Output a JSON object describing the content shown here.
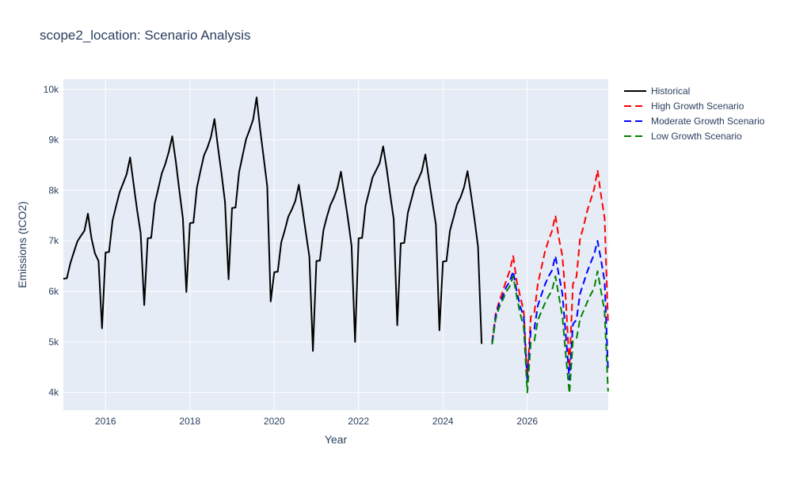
{
  "chart_data": {
    "type": "line",
    "title": "scope2_location: Scenario Analysis",
    "xlabel": "Year",
    "ylabel": "Emissions (tCO2)",
    "xlim": [
      2015.0,
      2027.92
    ],
    "ylim": [
      3650,
      10200
    ],
    "x_ticks": [
      2016,
      2018,
      2020,
      2022,
      2024,
      2026
    ],
    "x_tick_labels": [
      "2016",
      "2018",
      "2020",
      "2022",
      "2024",
      "2026"
    ],
    "y_ticks": [
      4000,
      5000,
      6000,
      7000,
      8000,
      9000,
      10000
    ],
    "y_tick_labels": [
      "4k",
      "5k",
      "6k",
      "7k",
      "8k",
      "9k",
      "10k"
    ],
    "grid": true,
    "legend_position": "top-right outside plot",
    "plot_background": "#e5ecf6",
    "series": [
      {
        "name": "Historical",
        "color": "#000000",
        "dash": "solid",
        "x": [
          2015.0,
          2015.083,
          2015.167,
          2015.25,
          2015.333,
          2015.417,
          2015.5,
          2015.583,
          2015.667,
          2015.75,
          2015.833,
          2015.917,
          2016.0,
          2016.083,
          2016.167,
          2016.25,
          2016.333,
          2016.417,
          2016.5,
          2016.583,
          2016.667,
          2016.75,
          2016.833,
          2016.917,
          2017.0,
          2017.083,
          2017.167,
          2017.25,
          2017.333,
          2017.417,
          2017.5,
          2017.583,
          2017.667,
          2017.75,
          2017.833,
          2017.917,
          2018.0,
          2018.083,
          2018.167,
          2018.25,
          2018.333,
          2018.417,
          2018.5,
          2018.583,
          2018.667,
          2018.75,
          2018.833,
          2018.917,
          2019.0,
          2019.083,
          2019.167,
          2019.25,
          2019.333,
          2019.417,
          2019.5,
          2019.583,
          2019.667,
          2019.75,
          2019.833,
          2019.917,
          2020.0,
          2020.083,
          2020.167,
          2020.25,
          2020.333,
          2020.417,
          2020.5,
          2020.583,
          2020.667,
          2020.75,
          2020.833,
          2020.917,
          2021.0,
          2021.083,
          2021.167,
          2021.25,
          2021.333,
          2021.417,
          2021.5,
          2021.583,
          2021.667,
          2021.75,
          2021.833,
          2021.917,
          2022.0,
          2022.083,
          2022.167,
          2022.25,
          2022.333,
          2022.417,
          2022.5,
          2022.583,
          2022.667,
          2022.75,
          2022.833,
          2022.917,
          2023.0,
          2023.083,
          2023.167,
          2023.25,
          2023.333,
          2023.417,
          2023.5,
          2023.583,
          2023.667,
          2023.75,
          2023.833,
          2023.917,
          2024.0,
          2024.083,
          2024.167,
          2024.25,
          2024.333,
          2024.417,
          2024.5,
          2024.583,
          2024.667,
          2024.75,
          2024.833,
          2024.917
        ],
        "y": [
          6250,
          6260,
          6560,
          6780,
          6990,
          7100,
          7200,
          7540,
          7050,
          6750,
          6600,
          5270,
          6770,
          6780,
          7400,
          7690,
          7960,
          8140,
          8320,
          8650,
          8110,
          7600,
          7150,
          5730,
          7050,
          7060,
          7740,
          8030,
          8330,
          8520,
          8760,
          9070,
          8570,
          8000,
          7450,
          5990,
          7350,
          7360,
          8050,
          8380,
          8690,
          8850,
          9060,
          9410,
          8840,
          8330,
          7770,
          6240,
          7650,
          7660,
          8360,
          8690,
          9010,
          9200,
          9400,
          9840,
          9200,
          8650,
          8080,
          5800,
          6380,
          6390,
          6970,
          7210,
          7480,
          7620,
          7790,
          8110,
          7640,
          7160,
          6690,
          4820,
          6600,
          6610,
          7210,
          7480,
          7710,
          7860,
          8050,
          8370,
          7890,
          7430,
          6900,
          5000,
          7050,
          7060,
          7700,
          7980,
          8260,
          8400,
          8540,
          8870,
          8420,
          7910,
          7430,
          5330,
          6950,
          6960,
          7550,
          7810,
          8070,
          8220,
          8380,
          8710,
          8220,
          7770,
          7320,
          5230,
          6590,
          6600,
          7200,
          7460,
          7720,
          7860,
          8060,
          8380,
          7910,
          7420,
          6880,
          4960
        ]
      },
      {
        "name": "High Growth Scenario",
        "color": "#ff0000",
        "dash": "dash",
        "x": [
          2025.167,
          2025.25,
          2025.333,
          2025.417,
          2025.5,
          2025.583,
          2025.667,
          2025.75,
          2025.833,
          2025.917,
          2026.0,
          2026.083,
          2026.167,
          2026.25,
          2026.333,
          2026.417,
          2026.5,
          2026.583,
          2026.667,
          2026.75,
          2026.833,
          2026.917,
          2027.0,
          2027.083,
          2027.167,
          2027.25,
          2027.333,
          2027.417,
          2027.5,
          2027.583,
          2027.667,
          2027.75,
          2027.833,
          2027.917
        ],
        "y": [
          5000,
          5550,
          5800,
          6000,
          6210,
          6410,
          6700,
          6200,
          5900,
          5600,
          4300,
          5500,
          5580,
          6150,
          6460,
          6780,
          7000,
          7190,
          7500,
          7050,
          6700,
          5800,
          4480,
          6150,
          6290,
          7030,
          7280,
          7580,
          7800,
          8020,
          8400,
          7900,
          7450,
          5350
        ]
      },
      {
        "name": "Moderate Growth Scenario",
        "color": "#0000ff",
        "dash": "dash",
        "x": [
          2025.167,
          2025.25,
          2025.333,
          2025.417,
          2025.5,
          2025.583,
          2025.667,
          2025.75,
          2025.833,
          2025.917,
          2026.0,
          2026.083,
          2026.167,
          2026.25,
          2026.333,
          2026.417,
          2026.5,
          2026.583,
          2026.667,
          2026.75,
          2026.833,
          2026.917,
          2027.0,
          2027.083,
          2027.167,
          2027.25,
          2027.333,
          2027.417,
          2027.5,
          2027.583,
          2027.667,
          2027.75,
          2027.833,
          2027.917
        ],
        "y": [
          4980,
          5510,
          5740,
          5900,
          6080,
          6200,
          6400,
          6000,
          5700,
          5500,
          4200,
          5240,
          5260,
          5720,
          5930,
          6130,
          6290,
          6410,
          6700,
          6320,
          5950,
          5100,
          4250,
          5350,
          5440,
          5950,
          6160,
          6380,
          6560,
          6730,
          7000,
          6620,
          6200,
          4420
        ]
      },
      {
        "name": "Low Growth Scenario",
        "color": "#008000",
        "dash": "dash",
        "x": [
          2025.167,
          2025.25,
          2025.333,
          2025.417,
          2025.5,
          2025.583,
          2025.667,
          2025.75,
          2025.833,
          2025.917,
          2026.0,
          2026.083,
          2026.167,
          2026.25,
          2026.333,
          2026.417,
          2026.5,
          2026.583,
          2026.667,
          2026.75,
          2026.833,
          2026.917,
          2027.0,
          2027.083,
          2027.167,
          2027.25,
          2027.333,
          2027.417,
          2027.5,
          2027.583,
          2027.667,
          2027.75,
          2027.833,
          2027.917
        ],
        "y": [
          4950,
          5450,
          5680,
          5830,
          5990,
          6100,
          6300,
          5900,
          5550,
          5300,
          4000,
          5000,
          5020,
          5430,
          5600,
          5760,
          5900,
          6010,
          6300,
          5900,
          5500,
          4700,
          3980,
          5020,
          5060,
          5450,
          5610,
          5780,
          5930,
          6060,
          6400,
          6000,
          5600,
          4020
        ]
      }
    ]
  }
}
